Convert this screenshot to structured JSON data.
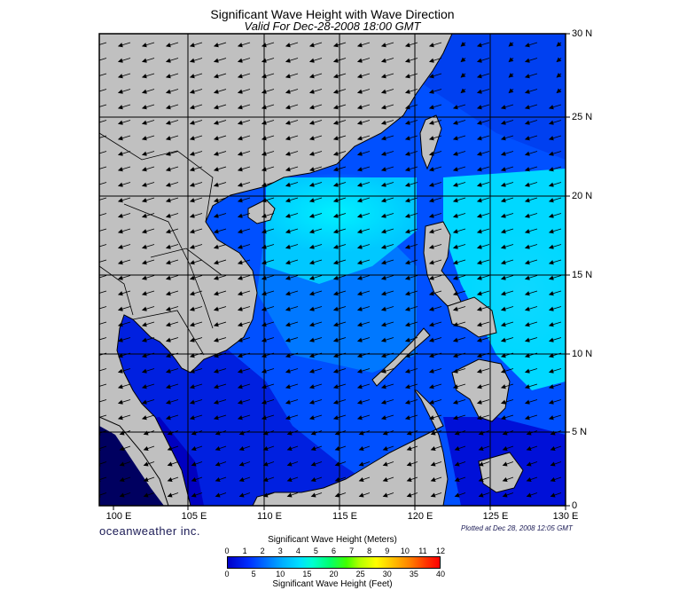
{
  "title": "Significant Wave Height with Wave Direction",
  "subtitle": "Valid For Dec-28-2008 18:00 GMT",
  "lat_labels": [
    "30 N",
    "25 N",
    "20 N",
    "15 N",
    "10 N",
    "5 N",
    "0"
  ],
  "lon_labels": [
    "100 E",
    "105 E",
    "110 E",
    "115 E",
    "120 E",
    "125 E",
    "130 E"
  ],
  "brand": "oceanweather inc.",
  "plotted": "Plotted at Dec 28, 2008 12:05 GMT",
  "colorbar": {
    "title_meters": "Significant Wave Height (Meters)",
    "title_feet": "Significant Wave Height (Feet)",
    "meters_ticks": [
      "0",
      "1",
      "2",
      "3",
      "4",
      "5",
      "6",
      "7",
      "8",
      "9",
      "10",
      "11",
      "12"
    ],
    "feet_ticks": [
      "0",
      "5",
      "10",
      "15",
      "20",
      "25",
      "30",
      "35",
      "40"
    ]
  },
  "colors": {
    "land": "#c0c0c0",
    "deep_blue": "#0000c8",
    "mid_blue": "#0050ff",
    "cyan": "#00e8ff",
    "grid": "#000000"
  },
  "map": {
    "lat_range": [
      0,
      30
    ],
    "lon_range": [
      100,
      130
    ],
    "arrow_direction": "southwest",
    "icons": [
      "wave-direction-arrow-icon"
    ]
  }
}
